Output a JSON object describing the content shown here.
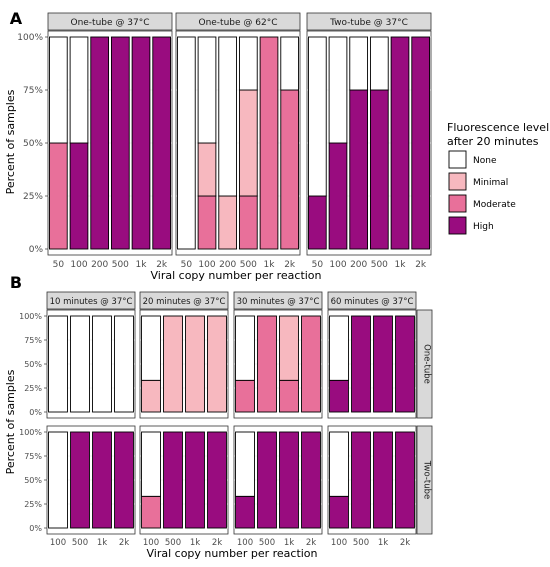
{
  "colors": {
    "None": "#ffffff",
    "Minimal": "#f7b8bf",
    "Moderate": "#e8709a",
    "High": "#990c7f",
    "panel_strip": "#d9d9d9",
    "gridline": "#ebebeb",
    "bar_outline": "#000000"
  },
  "legend": {
    "title_line1": "Fluorescence level",
    "title_line2": "after 20 minutes",
    "placement": "right",
    "items": [
      "None",
      "Minimal",
      "Moderate",
      "High"
    ]
  },
  "chart_data": [
    {
      "label": "A",
      "type": "bar",
      "stacked": true,
      "xlabel": "Viral copy number per reaction",
      "ylabel": "Percent of samples",
      "ylim": [
        0,
        100
      ],
      "yticks": [
        "0%",
        "25%",
        "50%",
        "75%",
        "100%"
      ],
      "grid": true,
      "stack_order_bottom_to_top": [
        "High",
        "Moderate",
        "Minimal",
        "None"
      ],
      "facets": [
        {
          "strip": "One-tube @ 37°C",
          "categories": [
            "50",
            "100",
            "200",
            "500",
            "1k",
            "2k"
          ],
          "series": [
            {
              "name": "High",
              "values": [
                0,
                50,
                100,
                100,
                100,
                100
              ]
            },
            {
              "name": "Moderate",
              "values": [
                50,
                0,
                0,
                0,
                0,
                0
              ]
            },
            {
              "name": "Minimal",
              "values": [
                0,
                0,
                0,
                0,
                0,
                0
              ]
            },
            {
              "name": "None",
              "values": [
                50,
                50,
                0,
                0,
                0,
                0
              ]
            }
          ]
        },
        {
          "strip": "One-tube @ 62°C",
          "categories": [
            "50",
            "100",
            "200",
            "500",
            "1k",
            "2k"
          ],
          "series": [
            {
              "name": "High",
              "values": [
                0,
                0,
                0,
                0,
                0,
                0
              ]
            },
            {
              "name": "Moderate",
              "values": [
                0,
                25,
                0,
                25,
                100,
                75
              ]
            },
            {
              "name": "Minimal",
              "values": [
                0,
                25,
                25,
                50,
                0,
                0
              ]
            },
            {
              "name": "None",
              "values": [
                100,
                50,
                75,
                25,
                0,
                25
              ]
            }
          ]
        },
        {
          "strip": "Two-tube @ 37°C",
          "categories": [
            "50",
            "100",
            "200",
            "500",
            "1k",
            "2k"
          ],
          "series": [
            {
              "name": "High",
              "values": [
                25,
                50,
                75,
                75,
                100,
                100
              ]
            },
            {
              "name": "Moderate",
              "values": [
                0,
                0,
                0,
                0,
                0,
                0
              ]
            },
            {
              "name": "Minimal",
              "values": [
                0,
                0,
                0,
                0,
                0,
                0
              ]
            },
            {
              "name": "None",
              "values": [
                75,
                50,
                25,
                25,
                0,
                0
              ]
            }
          ]
        }
      ]
    },
    {
      "label": "B",
      "type": "bar",
      "stacked": true,
      "xlabel": "Viral copy number per reaction",
      "ylabel": "Percent of samples",
      "ylim": [
        0,
        100
      ],
      "yticks": [
        "0%",
        "25%",
        "50%",
        "75%",
        "100%"
      ],
      "grid": true,
      "stack_order_bottom_to_top": [
        "High",
        "Moderate",
        "Minimal",
        "None"
      ],
      "column_strips": [
        "10 minutes @ 37°C",
        "20 minutes @ 37°C",
        "30 minutes @ 37°C",
        "60 minutes @ 37°C"
      ],
      "row_strips": [
        "One-tube",
        "Two-tube"
      ],
      "categories": [
        "100",
        "500",
        "1k",
        "2k"
      ],
      "facets": [
        {
          "row": "One-tube",
          "col": "10 minutes @ 37°C",
          "series": [
            {
              "name": "High",
              "values": [
                0,
                0,
                0,
                0
              ]
            },
            {
              "name": "Moderate",
              "values": [
                0,
                0,
                0,
                0
              ]
            },
            {
              "name": "Minimal",
              "values": [
                0,
                0,
                0,
                0
              ]
            },
            {
              "name": "None",
              "values": [
                100,
                100,
                100,
                100
              ]
            }
          ]
        },
        {
          "row": "One-tube",
          "col": "20 minutes @ 37°C",
          "series": [
            {
              "name": "High",
              "values": [
                0,
                0,
                0,
                0
              ]
            },
            {
              "name": "Moderate",
              "values": [
                0,
                0,
                0,
                0
              ]
            },
            {
              "name": "Minimal",
              "values": [
                33,
                100,
                100,
                100
              ]
            },
            {
              "name": "None",
              "values": [
                67,
                0,
                0,
                0
              ]
            }
          ]
        },
        {
          "row": "One-tube",
          "col": "30 minutes @ 37°C",
          "series": [
            {
              "name": "High",
              "values": [
                0,
                0,
                0,
                0
              ]
            },
            {
              "name": "Moderate",
              "values": [
                33,
                100,
                33,
                100
              ]
            },
            {
              "name": "Minimal",
              "values": [
                0,
                0,
                67,
                0
              ]
            },
            {
              "name": "None",
              "values": [
                67,
                0,
                0,
                0
              ]
            }
          ]
        },
        {
          "row": "One-tube",
          "col": "60 minutes @ 37°C",
          "series": [
            {
              "name": "High",
              "values": [
                33,
                100,
                100,
                100
              ]
            },
            {
              "name": "Moderate",
              "values": [
                0,
                0,
                0,
                0
              ]
            },
            {
              "name": "Minimal",
              "values": [
                0,
                0,
                0,
                0
              ]
            },
            {
              "name": "None",
              "values": [
                67,
                0,
                0,
                0
              ]
            }
          ]
        },
        {
          "row": "Two-tube",
          "col": "10 minutes @ 37°C",
          "series": [
            {
              "name": "High",
              "values": [
                0,
                100,
                100,
                100
              ]
            },
            {
              "name": "Moderate",
              "values": [
                0,
                0,
                0,
                0
              ]
            },
            {
              "name": "Minimal",
              "values": [
                0,
                0,
                0,
                0
              ]
            },
            {
              "name": "None",
              "values": [
                100,
                0,
                0,
                0
              ]
            }
          ]
        },
        {
          "row": "Two-tube",
          "col": "20 minutes @ 37°C",
          "series": [
            {
              "name": "High",
              "values": [
                0,
                100,
                100,
                100
              ]
            },
            {
              "name": "Moderate",
              "values": [
                33,
                0,
                0,
                0
              ]
            },
            {
              "name": "Minimal",
              "values": [
                0,
                0,
                0,
                0
              ]
            },
            {
              "name": "None",
              "values": [
                67,
                0,
                0,
                0
              ]
            }
          ]
        },
        {
          "row": "Two-tube",
          "col": "30 minutes @ 37°C",
          "series": [
            {
              "name": "High",
              "values": [
                33,
                100,
                100,
                100
              ]
            },
            {
              "name": "Moderate",
              "values": [
                0,
                0,
                0,
                0
              ]
            },
            {
              "name": "Minimal",
              "values": [
                0,
                0,
                0,
                0
              ]
            },
            {
              "name": "None",
              "values": [
                67,
                0,
                0,
                0
              ]
            }
          ]
        },
        {
          "row": "Two-tube",
          "col": "60 minutes @ 37°C",
          "series": [
            {
              "name": "High",
              "values": [
                33,
                100,
                100,
                100
              ]
            },
            {
              "name": "Moderate",
              "values": [
                0,
                0,
                0,
                0
              ]
            },
            {
              "name": "Minimal",
              "values": [
                0,
                0,
                0,
                0
              ]
            },
            {
              "name": "None",
              "values": [
                67,
                0,
                0,
                0
              ]
            }
          ]
        }
      ]
    }
  ]
}
